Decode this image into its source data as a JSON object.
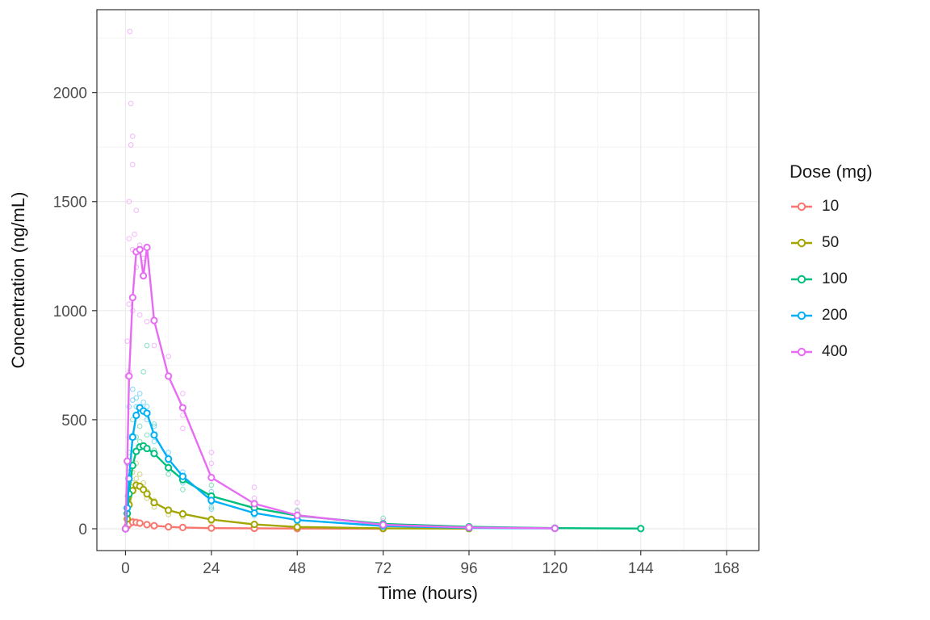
{
  "chart_data": {
    "type": "line+scatter",
    "title": "",
    "xlabel": "Time (hours)",
    "ylabel": "Concentration (ng/mL)",
    "xlim": [
      -8,
      177
    ],
    "ylim": [
      -100,
      2380
    ],
    "x_ticks": [
      0,
      24,
      48,
      72,
      96,
      120,
      144,
      168
    ],
    "y_ticks": [
      0,
      500,
      1000,
      1500,
      2000
    ],
    "grid": "major+minor",
    "legend": {
      "title": "Dose (mg)",
      "position": "right"
    },
    "series": [
      {
        "name": "10",
        "color": "#F8766D",
        "mean": {
          "x": [
            0,
            0.5,
            1,
            2,
            3,
            4,
            6,
            8,
            12,
            16,
            24,
            36,
            48,
            72
          ],
          "y": [
            0,
            12,
            22,
            30,
            29,
            26,
            19,
            14,
            9,
            6,
            3,
            2,
            1,
            0.4
          ]
        },
        "points": [
          [
            0.5,
            6
          ],
          [
            0.5,
            14
          ],
          [
            1,
            22
          ],
          [
            1,
            30
          ],
          [
            2,
            33
          ],
          [
            2,
            38
          ],
          [
            3,
            30
          ],
          [
            3,
            24
          ],
          [
            4,
            27
          ],
          [
            4,
            20
          ],
          [
            6,
            19
          ],
          [
            6,
            14
          ],
          [
            8,
            13
          ],
          [
            8,
            9
          ],
          [
            12,
            8
          ],
          [
            12,
            5
          ],
          [
            16,
            5
          ],
          [
            24,
            3
          ],
          [
            24,
            2
          ],
          [
            36,
            1.5
          ],
          [
            48,
            1
          ],
          [
            72,
            0.5
          ]
        ]
      },
      {
        "name": "50",
        "color": "#A3A500",
        "mean": {
          "x": [
            0,
            0.5,
            1,
            2,
            3,
            4,
            5,
            6,
            8,
            12,
            16,
            24,
            36,
            48,
            72,
            96
          ],
          "y": [
            0,
            45,
            110,
            175,
            200,
            195,
            180,
            160,
            120,
            85,
            68,
            42,
            20,
            8,
            2,
            0.6
          ]
        },
        "points": [
          [
            0.5,
            30
          ],
          [
            0.5,
            70
          ],
          [
            1,
            120
          ],
          [
            1,
            170
          ],
          [
            2,
            210
          ],
          [
            2,
            260
          ],
          [
            3,
            300
          ],
          [
            3,
            230
          ],
          [
            4,
            250
          ],
          [
            4,
            190
          ],
          [
            5,
            210
          ],
          [
            6,
            170
          ],
          [
            6,
            140
          ],
          [
            8,
            130
          ],
          [
            8,
            100
          ],
          [
            12,
            90
          ],
          [
            12,
            65
          ],
          [
            16,
            75
          ],
          [
            16,
            55
          ],
          [
            24,
            48
          ],
          [
            24,
            32
          ],
          [
            36,
            25
          ],
          [
            36,
            14
          ],
          [
            48,
            10
          ],
          [
            48,
            5
          ],
          [
            72,
            2
          ]
        ]
      },
      {
        "name": "100",
        "color": "#00BF7D",
        "mean": {
          "x": [
            0,
            0.5,
            1,
            2,
            3,
            4,
            5,
            6,
            8,
            12,
            16,
            24,
            36,
            48,
            72,
            96,
            120,
            144
          ],
          "y": [
            0,
            70,
            160,
            290,
            355,
            375,
            380,
            368,
            345,
            280,
            225,
            150,
            95,
            60,
            22,
            9,
            3,
            1
          ]
        },
        "points": [
          [
            0.5,
            60
          ],
          [
            0.5,
            150
          ],
          [
            1,
            260
          ],
          [
            1,
            350
          ],
          [
            2,
            430
          ],
          [
            2,
            500
          ],
          [
            3,
            420
          ],
          [
            3,
            360
          ],
          [
            4,
            470
          ],
          [
            4,
            400
          ],
          [
            5,
            720
          ],
          [
            5,
            380
          ],
          [
            6,
            840
          ],
          [
            6,
            430
          ],
          [
            8,
            480
          ],
          [
            8,
            360
          ],
          [
            12,
            310
          ],
          [
            12,
            250
          ],
          [
            16,
            230
          ],
          [
            16,
            180
          ],
          [
            24,
            200
          ],
          [
            24,
            140
          ],
          [
            24,
            100
          ],
          [
            36,
            120
          ],
          [
            36,
            80
          ],
          [
            48,
            85
          ],
          [
            48,
            45
          ],
          [
            72,
            48
          ],
          [
            72,
            25
          ],
          [
            96,
            12
          ],
          [
            120,
            5
          ],
          [
            144,
            2
          ]
        ]
      },
      {
        "name": "200",
        "color": "#00B0F6",
        "mean": {
          "x": [
            0,
            0.5,
            1,
            2,
            3,
            4,
            5,
            6,
            8,
            12,
            16,
            24,
            36,
            48,
            72,
            96,
            120
          ],
          "y": [
            0,
            95,
            230,
            420,
            520,
            555,
            540,
            530,
            430,
            320,
            240,
            130,
            72,
            40,
            13,
            4,
            1.5
          ]
        },
        "points": [
          [
            0.5,
            100
          ],
          [
            0.5,
            300
          ],
          [
            1,
            420
          ],
          [
            1,
            560
          ],
          [
            2,
            590
          ],
          [
            2,
            640
          ],
          [
            3,
            600
          ],
          [
            3,
            560
          ],
          [
            4,
            620
          ],
          [
            4,
            560
          ],
          [
            5,
            580
          ],
          [
            6,
            560
          ],
          [
            6,
            500
          ],
          [
            8,
            470
          ],
          [
            8,
            400
          ],
          [
            12,
            350
          ],
          [
            12,
            280
          ],
          [
            16,
            260
          ],
          [
            16,
            210
          ],
          [
            24,
            170
          ],
          [
            24,
            120
          ],
          [
            24,
            90
          ],
          [
            36,
            95
          ],
          [
            36,
            60
          ],
          [
            48,
            55
          ],
          [
            48,
            30
          ],
          [
            72,
            18
          ],
          [
            72,
            8
          ],
          [
            96,
            5
          ],
          [
            120,
            2
          ]
        ]
      },
      {
        "name": "400",
        "color": "#E76BF3",
        "mean": {
          "x": [
            0,
            0.5,
            1,
            2,
            3,
            4,
            5,
            6,
            8,
            12,
            16,
            24,
            36,
            48,
            72,
            96,
            120
          ],
          "y": [
            0,
            310,
            700,
            1060,
            1270,
            1280,
            1160,
            1290,
            955,
            700,
            555,
            235,
            115,
            62,
            18,
            6,
            2
          ]
        },
        "points": [
          [
            0.5,
            700
          ],
          [
            0.5,
            860
          ],
          [
            1,
            720
          ],
          [
            1,
            1030
          ],
          [
            1,
            1330
          ],
          [
            1,
            1500
          ],
          [
            1.2,
            2280
          ],
          [
            1.5,
            1950
          ],
          [
            1.5,
            1760
          ],
          [
            2,
            1800
          ],
          [
            2,
            1670
          ],
          [
            2,
            1280
          ],
          [
            2,
            1000
          ],
          [
            2.5,
            1350
          ],
          [
            3,
            1460
          ],
          [
            3,
            1270
          ],
          [
            3,
            1200
          ],
          [
            4,
            1300
          ],
          [
            4,
            980
          ],
          [
            5,
            1240
          ],
          [
            6,
            1290
          ],
          [
            6,
            950
          ],
          [
            8,
            955
          ],
          [
            8,
            840
          ],
          [
            12,
            790
          ],
          [
            12,
            700
          ],
          [
            16,
            620
          ],
          [
            16,
            520
          ],
          [
            16,
            460
          ],
          [
            24,
            350
          ],
          [
            24,
            300
          ],
          [
            24,
            230
          ],
          [
            36,
            190
          ],
          [
            36,
            140
          ],
          [
            36,
            110
          ],
          [
            48,
            120
          ],
          [
            48,
            80
          ],
          [
            48,
            55
          ],
          [
            72,
            35
          ],
          [
            72,
            18
          ],
          [
            96,
            8
          ],
          [
            120,
            3
          ]
        ]
      }
    ]
  }
}
